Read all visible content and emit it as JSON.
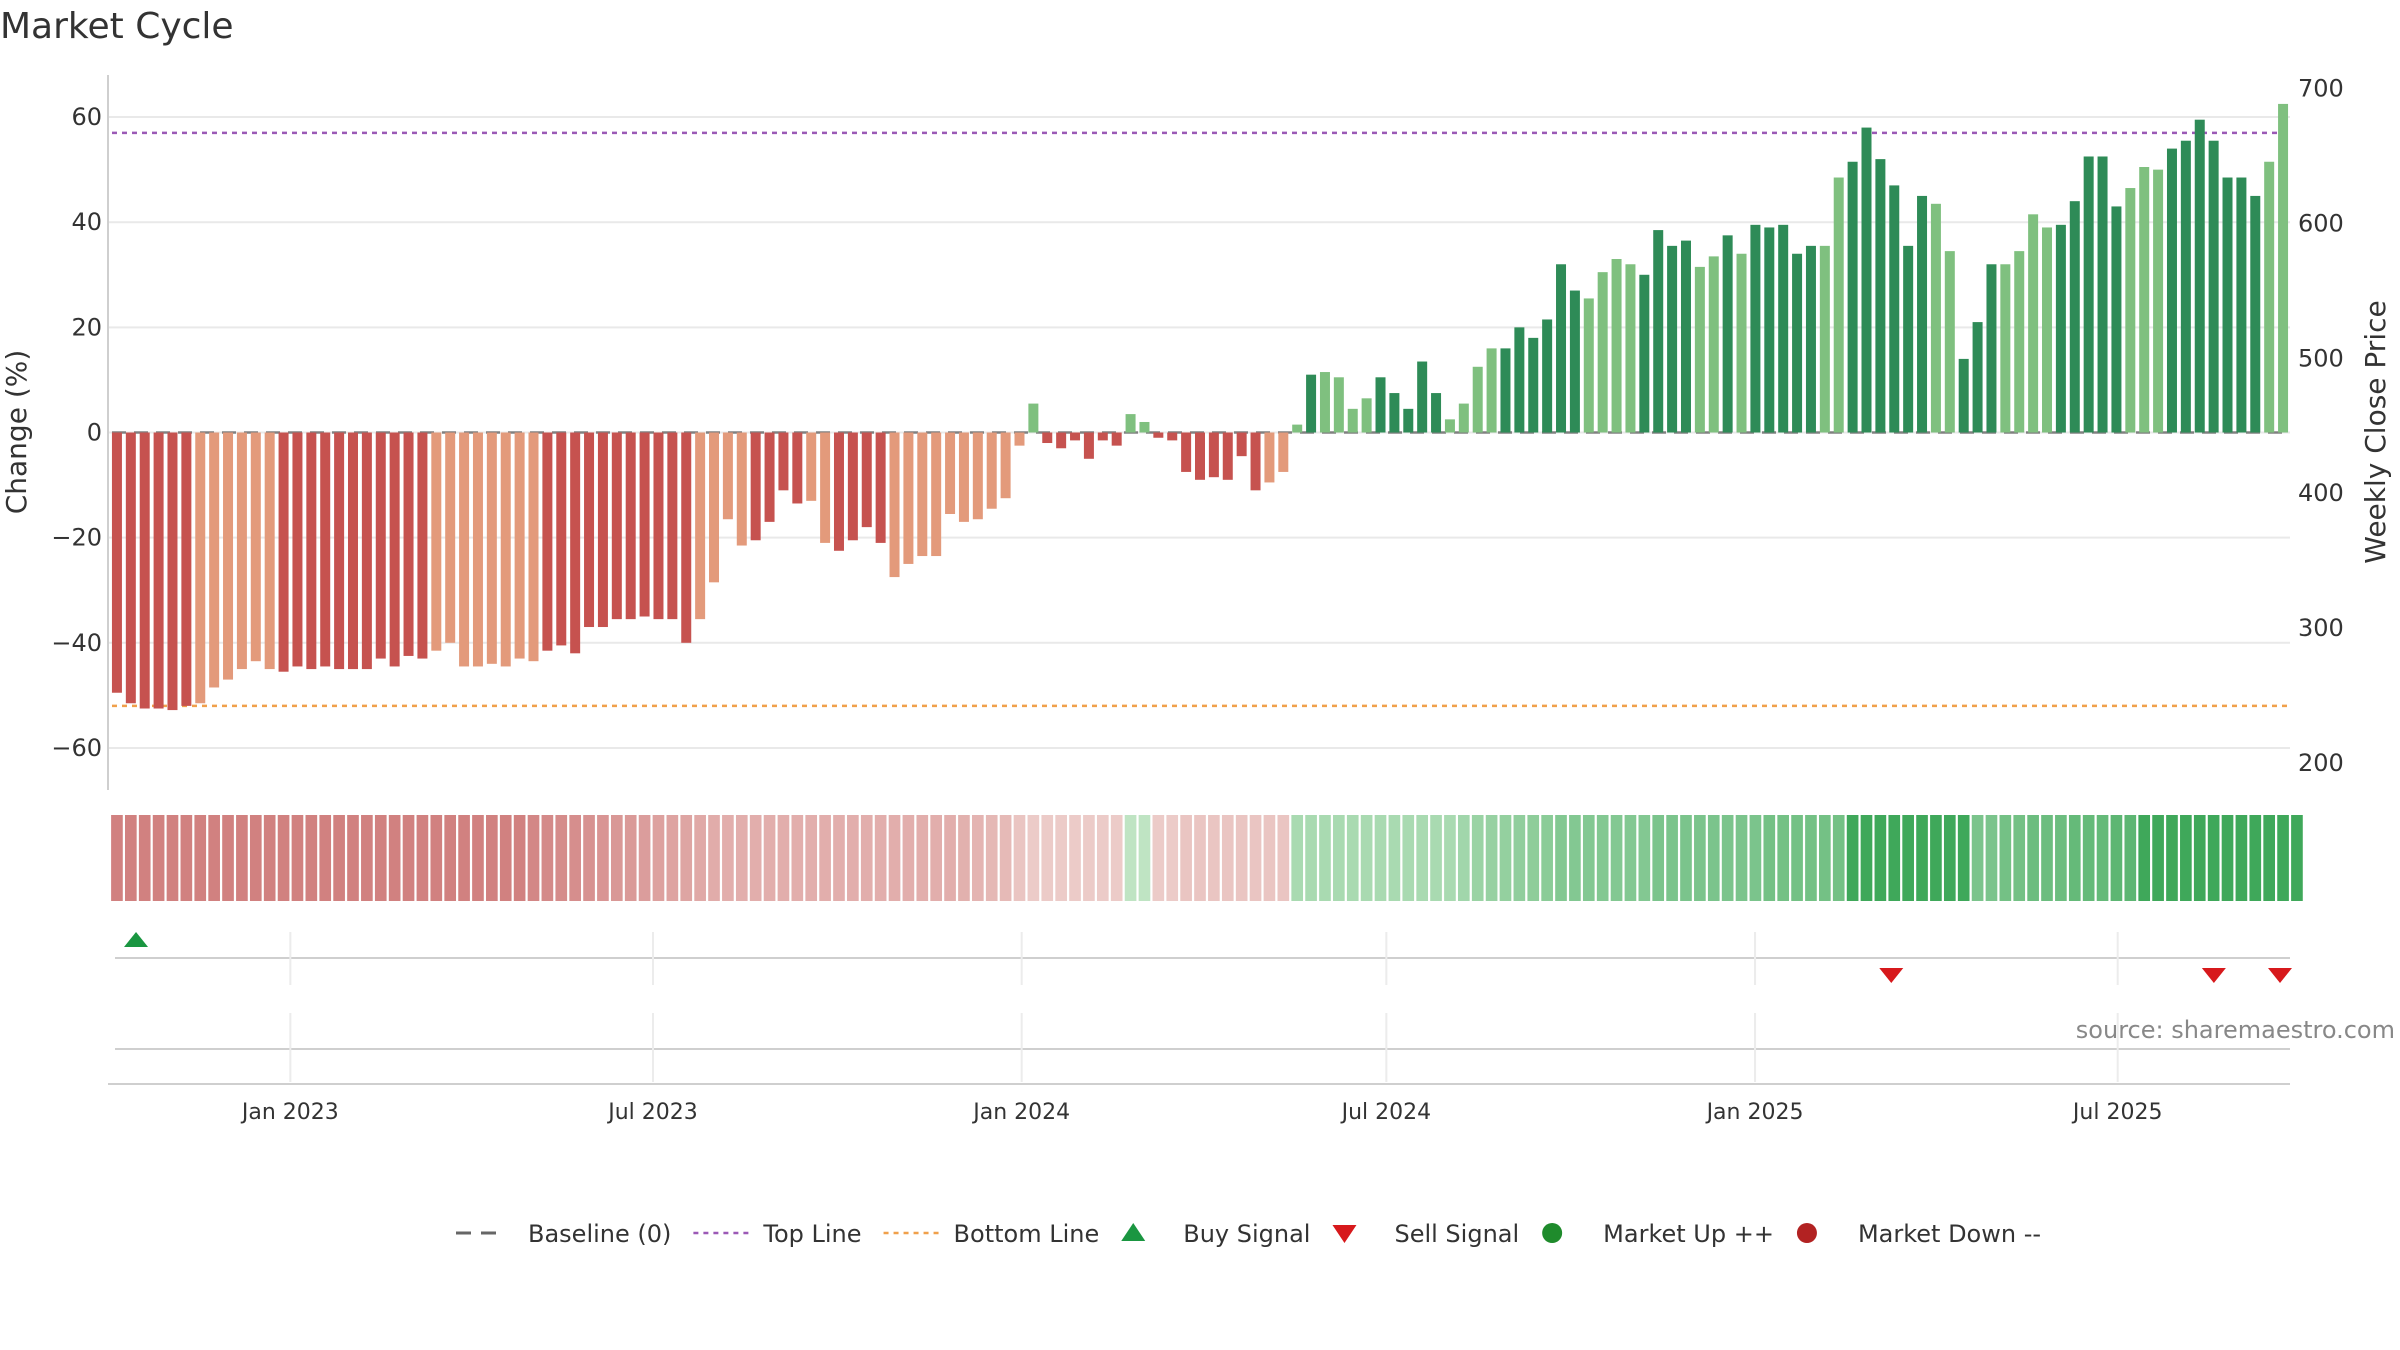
{
  "page": {
    "title": "Market Cycle"
  },
  "colors": {
    "neg_dark": "#c6524f",
    "neg_light": "#e39a7b",
    "pos_dark": "#2e8b57",
    "pos_light": "#7fc07f",
    "top_line": "#9b59b6",
    "bottom_line": "#f0a04b",
    "buy": "#1a9641",
    "sell": "#d7191c",
    "market_up": "#1f8b2c",
    "market_down": "#b22222",
    "baseline": "#666666"
  },
  "chart_data": {
    "type": "bar",
    "title": "Market Cycle",
    "ylabel_left": "Change (%)",
    "ylabel_right": "Weekly Close Price",
    "ylim_left": [
      -68,
      68
    ],
    "ylim_right": [
      180,
      710
    ],
    "yticks_left": [
      60,
      40,
      20,
      0,
      -20,
      -40,
      -60
    ],
    "yticks_left_labels": [
      "60",
      "40",
      "20",
      "0",
      "−20",
      "−40",
      "−60"
    ],
    "yticks_right": [
      700,
      600,
      500,
      400,
      300,
      200
    ],
    "x_start": "2022-10-03",
    "x_end": "2025-09-22",
    "x_ticks": [
      {
        "date": "2023-01-01",
        "label": "Jan 2023"
      },
      {
        "date": "2023-07-01",
        "label": "Jul 2023"
      },
      {
        "date": "2024-01-01",
        "label": "Jan 2024"
      },
      {
        "date": "2024-07-01",
        "label": "Jul 2024"
      },
      {
        "date": "2025-01-01",
        "label": "Jan 2025"
      },
      {
        "date": "2025-07-01",
        "label": "Jul 2025"
      }
    ],
    "top_line": 57,
    "bottom_line": -52,
    "baseline": 0,
    "values": [
      -49.5,
      -51.5,
      -52.5,
      -52.5,
      -52.8,
      -52,
      -51.5,
      -48.5,
      -47,
      -45,
      -43.5,
      -45,
      -45.5,
      -44.5,
      -45,
      -44.5,
      -45,
      -45,
      -45,
      -43,
      -44.5,
      -42.5,
      -43,
      -41.5,
      -40,
      -44.5,
      -44.5,
      -44,
      -44.5,
      -43,
      -43.5,
      -41.5,
      -40.5,
      -42,
      -37,
      -37,
      -35.5,
      -35.5,
      -35,
      -35.5,
      -35.5,
      -40,
      -35.5,
      -28.5,
      -16.5,
      -21.5,
      -20.5,
      -17,
      -11,
      -13.5,
      -13,
      -21,
      -22.5,
      -20.5,
      -18,
      -21,
      -27.5,
      -25,
      -23.5,
      -23.5,
      -15.5,
      -17,
      -16.5,
      -14.5,
      -12.5,
      -2.5,
      5.5,
      -2,
      -3,
      -1.5,
      -5,
      -1.5,
      -2.5,
      3.5,
      2,
      -1,
      -1.5,
      -7.5,
      -9,
      -8.5,
      -9,
      -4.5,
      -11,
      -9.5,
      -7.5,
      1.5,
      11,
      11.5,
      10.5,
      4.5,
      6.5,
      10.5,
      7.5,
      4.5,
      13.5,
      7.5,
      2.5,
      5.5,
      12.5,
      16,
      16,
      20,
      18,
      21.5,
      32,
      27,
      25.5,
      30.5,
      33,
      32,
      30,
      38.5,
      35.5,
      36.5,
      31.5,
      33.5,
      37.5,
      34,
      39.5,
      39,
      39.5,
      34,
      35.5,
      35.5,
      48.5,
      51.5,
      58,
      52,
      47,
      35.5,
      45,
      43.5,
      34.5,
      14,
      21,
      32,
      32,
      34.5,
      41.5,
      39,
      39.5,
      44,
      52.5,
      52.5,
      43,
      46.5,
      50.5,
      50,
      54,
      55.5,
      59.5,
      55.5,
      48.5,
      48.5,
      45,
      51.5,
      62.5
    ],
    "bar_shades": "DDDDDDLLLLLLDDDDDDDDDDDLLLLLLLLDDDDDDDDDDDLLLLDDDDLLDDDDLLLLLLLLLLLDDDDDDLLDDDDDDDDLLLDLLLLDDDDDLLLLDDDDDDLLLLDDDDLLDLDDDDDLLDDDDDDLLDDDLLLLDDDDDLLLDDDDDDDLLLLDD",
    "cycle_strip": [
      -0.8,
      -0.8,
      -0.8,
      -0.8,
      -0.8,
      -0.8,
      -0.8,
      -0.8,
      -0.8,
      -0.8,
      -0.8,
      -0.8,
      -0.8,
      -0.8,
      -0.8,
      -0.8,
      -0.8,
      -0.8,
      -0.8,
      -0.8,
      -0.8,
      -0.8,
      -0.8,
      -0.8,
      -0.8,
      -0.8,
      -0.8,
      -0.8,
      -0.8,
      -0.8,
      -0.75,
      -0.72,
      -0.7,
      -0.68,
      -0.65,
      -0.62,
      -0.6,
      -0.58,
      -0.55,
      -0.52,
      -0.5,
      -0.48,
      -0.45,
      -0.42,
      -0.4,
      -0.4,
      -0.4,
      -0.4,
      -0.4,
      -0.4,
      -0.4,
      -0.4,
      -0.4,
      -0.4,
      -0.4,
      -0.4,
      -0.4,
      -0.4,
      -0.4,
      -0.4,
      -0.4,
      -0.38,
      -0.35,
      -0.32,
      -0.3,
      -0.2,
      -0.15,
      -0.15,
      -0.15,
      -0.15,
      -0.15,
      -0.15,
      -0.15,
      0.15,
      0.15,
      -0.15,
      -0.15,
      -0.2,
      -0.2,
      -0.2,
      -0.2,
      -0.2,
      -0.2,
      -0.2,
      -0.2,
      0.3,
      0.3,
      0.3,
      0.3,
      0.3,
      0.3,
      0.3,
      0.3,
      0.3,
      0.3,
      0.3,
      0.3,
      0.35,
      0.4,
      0.42,
      0.44,
      0.46,
      0.48,
      0.5,
      0.55,
      0.55,
      0.55,
      0.55,
      0.55,
      0.55,
      0.55,
      0.6,
      0.6,
      0.6,
      0.6,
      0.6,
      0.6,
      0.6,
      0.6,
      0.65,
      0.65,
      0.65,
      0.65,
      0.65,
      0.65,
      1,
      1,
      1,
      1,
      1,
      1,
      1,
      1,
      1,
      0.6,
      0.6,
      0.65,
      0.65,
      0.7,
      0.7,
      0.7,
      0.75,
      0.75,
      0.75,
      0.8,
      0.8,
      1,
      1,
      1,
      1,
      1,
      1,
      1,
      1,
      1,
      1,
      1,
      1
    ],
    "buy_signals": [
      "2022-10-10"
    ],
    "sell_signals": [
      "2025-03-10",
      "2025-08-18",
      "2025-09-22"
    ],
    "market_up_signals": [],
    "market_down_signals": []
  },
  "source": "source: sharemaestro.com",
  "legend": [
    {
      "key": "baseline",
      "label": "Baseline (0)"
    },
    {
      "key": "top_line",
      "label": "Top Line"
    },
    {
      "key": "bottom_line",
      "label": "Bottom Line"
    },
    {
      "key": "buy",
      "label": "Buy Signal"
    },
    {
      "key": "sell",
      "label": "Sell Signal"
    },
    {
      "key": "market_up",
      "label": "Market Up ++"
    },
    {
      "key": "market_down",
      "label": "Market Down --"
    }
  ]
}
